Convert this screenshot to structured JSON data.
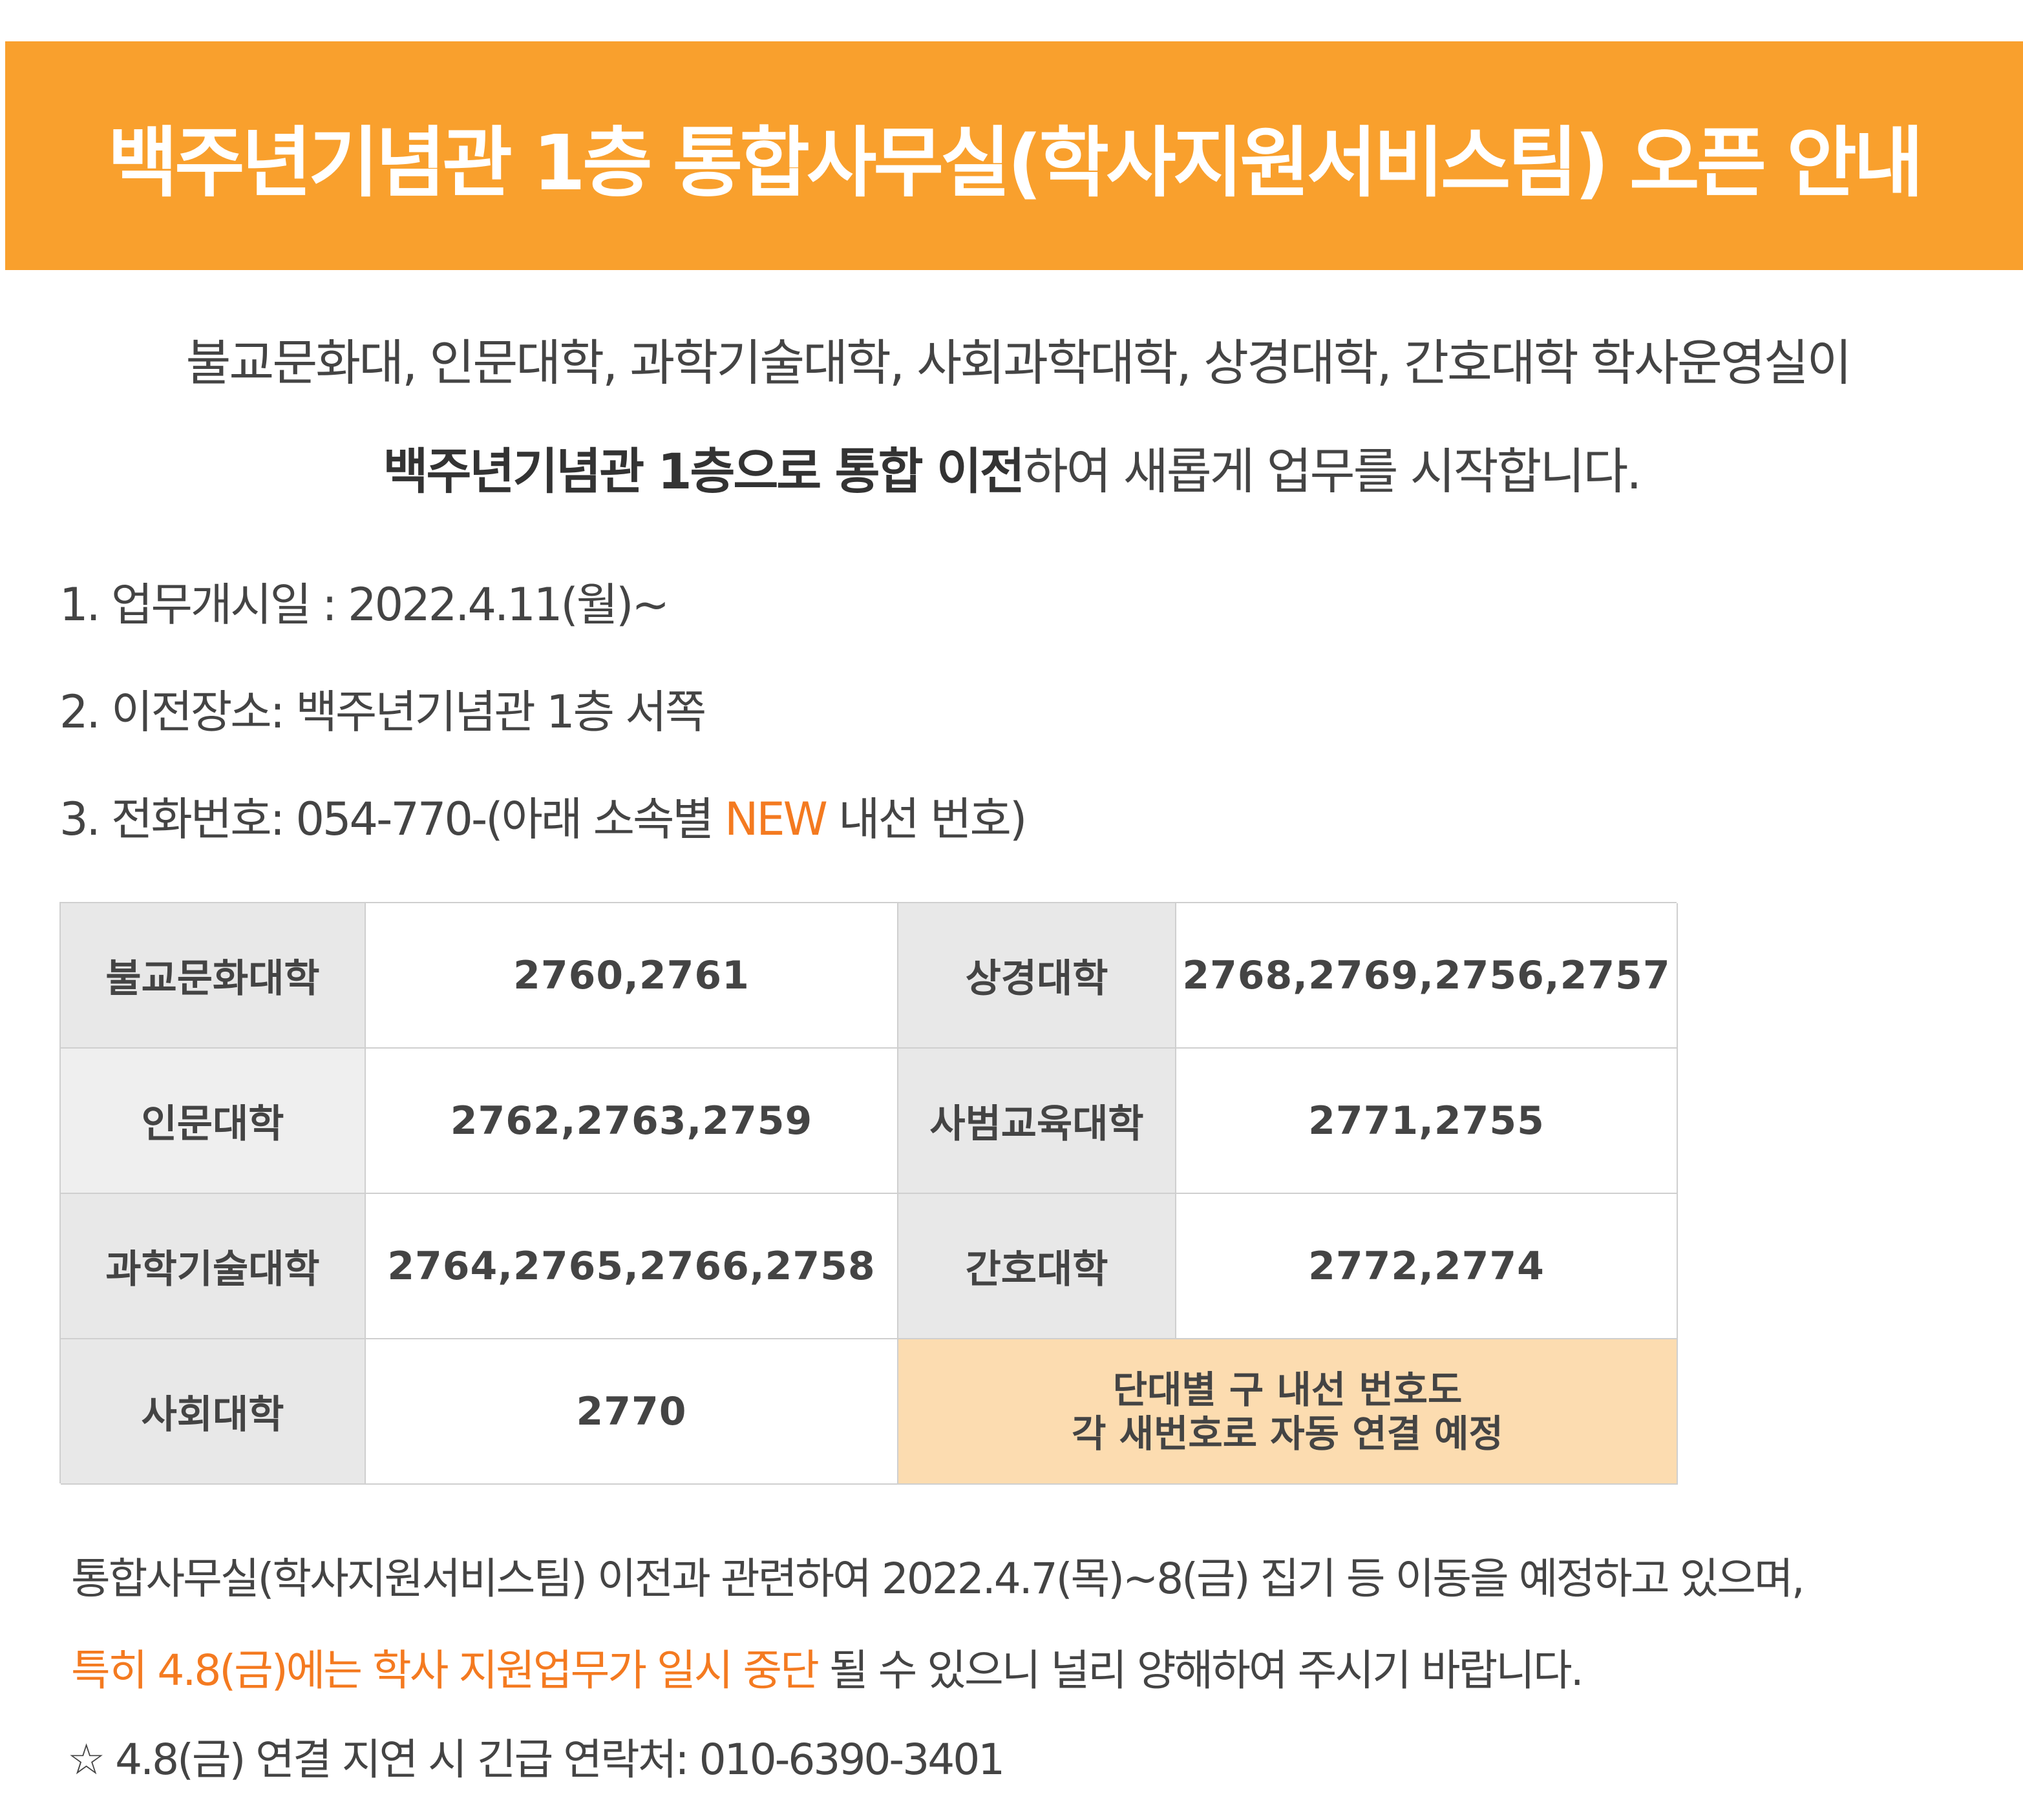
{
  "banner": {
    "title": "백주년기념관 1층 통합사무실(학사지원서비스팀) 오픈 안내"
  },
  "intro": {
    "line1": "불교문화대, 인문대학, 과학기술대학, 사회과학대학, 상경대학, 간호대학 학사운영실이",
    "line2_bold": "백주년기념관 1층으로 통합 이전",
    "line2_rest": "하여 새롭게 업무를 시작합니다."
  },
  "items": {
    "item1": "1. 업무개시일 : 2022.4.11(월)~",
    "item2": "2. 이전장소: 백주년기념관 1층 서쪽",
    "item3_prefix": "3. 전화번호: 054-770-(아래 소속별 ",
    "item3_highlight": "NEW",
    "item3_suffix": " 내선 번호)"
  },
  "table": {
    "rows": [
      {
        "left_label": "불교문화대학",
        "left_value": "2760,2761",
        "right_label": "상경대학",
        "right_value": "2768,2769,2756,2757"
      },
      {
        "left_label": "인문대학",
        "left_value": "2762,2763,2759",
        "right_label": "사범교육대학",
        "right_value": "2771,2755"
      },
      {
        "left_label": "과학기술대학",
        "left_value": "2764,2765,2766,2758",
        "right_label": "간호대학",
        "right_value": "2772,2774"
      },
      {
        "left_label": "사회대학",
        "left_value": "2770"
      }
    ],
    "note_line1": "단대별 구 내선 번호도",
    "note_line2": "각 새번호로 자동 연결 예정"
  },
  "footer": {
    "line1": "통합사무실(학사지원서비스팀) 이전과 관련하여 2022.4.7(목)~8(금) 집기 등 이동을 예정하고 있으며,",
    "line2_highlight": "특히 4.8(금)에는 학사 지원업무가 일시 중단",
    "line2_rest": " 될 수 있으니 널리 양해하여 주시기 바랍니다.",
    "line3": "☆ 4.8(금) 연결 지연 시 긴급 연락처: 010-6390-3401"
  },
  "colors": {
    "banner": "#f9a02d",
    "highlight": "#f47a20",
    "note_bg": "#fcdcb0",
    "header_cell": "#e8e8e8"
  }
}
